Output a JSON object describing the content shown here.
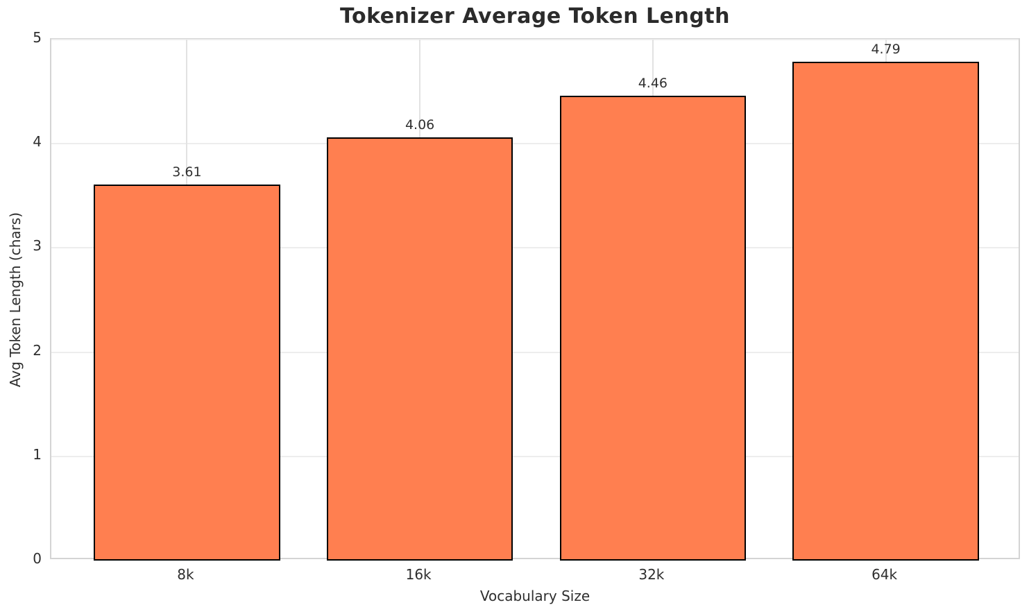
{
  "title": "Tokenizer Average Token Length",
  "chart_data": {
    "type": "bar",
    "title": "Tokenizer Average Token Length",
    "categories": [
      "8k",
      "16k",
      "32k",
      "64k"
    ],
    "values": [
      3.61,
      4.06,
      4.46,
      4.79
    ],
    "value_labels": [
      "3.61",
      "4.06",
      "4.46",
      "4.79"
    ],
    "xlabel": "Vocabulary Size",
    "ylabel": "Avg Token Length (chars)",
    "ylim": [
      0,
      5
    ],
    "yticks": [
      0,
      1,
      2,
      3,
      4,
      5
    ],
    "grid": true,
    "legend": "none",
    "bar_color": "#FF7F50",
    "bar_edge_color": "#000000"
  },
  "colors": {
    "background": "#ffffff",
    "bar_fill": "#FF7F50",
    "bar_edge": "#000000",
    "grid": "#ededed",
    "spine": "#d4d4d4",
    "text": "#2e2e2e"
  }
}
